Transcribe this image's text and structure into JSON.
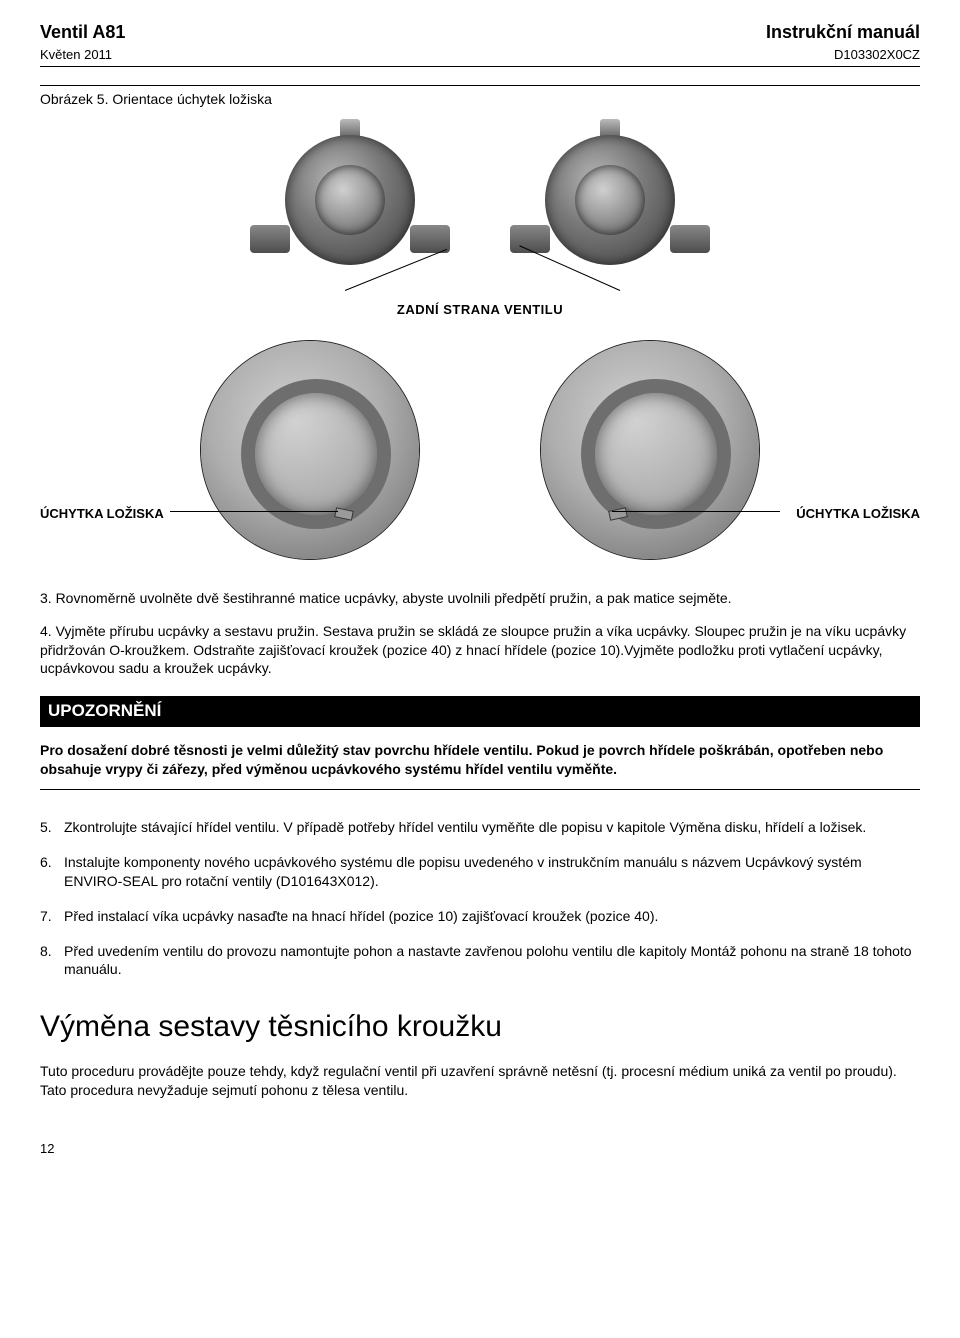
{
  "header": {
    "left_title": "Ventil A81",
    "left_sub": "Květen 2011",
    "right_title": "Instrukční manuál",
    "right_sub": "D103302X0CZ"
  },
  "figure": {
    "caption": "Obrázek 5. Orientace úchytek ložiska",
    "label_mid": "ZADNÍ STRANA VENTILU",
    "label_left": "ÚCHYTKA LOŽISKA",
    "label_right": "ÚCHYTKA LOŽISKA"
  },
  "steps_top": {
    "s3": "3.  Rovnoměrně uvolněte dvě šestihranné matice ucpávky, abyste uvolnili předpětí pružin, a pak matice sejměte.",
    "s4": "4.  Vyjměte přírubu ucpávky a sestavu pružin. Sestava pružin se skládá ze sloupce pružin a víka ucpávky. Sloupec pružin je na víku ucpávky přidržován O-kroužkem. Odstraňte zajišťovací kroužek (pozice 40) z hnací hřídele (pozice 10).Vyjměte podložku proti vytlačení ucpávky, ucpávkovou sadu a kroužek ucpávky."
  },
  "notice": {
    "bar": "UPOZORNĚNÍ",
    "text": "Pro dosažení dobré těsnosti je velmi důležitý stav povrchu hřídele ventilu. Pokud je povrch hřídele poškrábán, opotřeben nebo obsahuje vrypy či zářezy, před výměnou ucpávkového systému hřídel ventilu vyměňte."
  },
  "steps_bottom": [
    {
      "n": "5.",
      "t": "Zkontrolujte stávající hřídel ventilu. V případě potřeby hřídel ventilu vyměňte dle popisu v kapitole Výměna disku, hřídelí a ložisek."
    },
    {
      "n": "6.",
      "t": "Instalujte komponenty nového ucpávkového systému dle popisu uvedeného v instrukčním manuálu s názvem Ucpávkový systém ENVIRO-SEAL pro rotační ventily (D101643X012)."
    },
    {
      "n": "7.",
      "t": "Před instalací víka ucpávky nasaďte na hnací hřídel (pozice 10) zajišťovací kroužek (pozice 40)."
    },
    {
      "n": "8.",
      "t": "Před uvedením ventilu do provozu namontujte pohon a nastavte zavřenou polohu ventilu dle kapitoly Montáž pohonu na straně 18 tohoto manuálu."
    }
  ],
  "section": {
    "title": "Výměna sestavy těsnicího kroužku",
    "body": "Tuto proceduru provádějte pouze tehdy, když regulační ventil při uzavření správně netěsní (tj. procesní médium uniká za ventil po proudu). Tato procedura nevyžaduje sejmutí pohonu z tělesa ventilu."
  },
  "page_number": "12"
}
